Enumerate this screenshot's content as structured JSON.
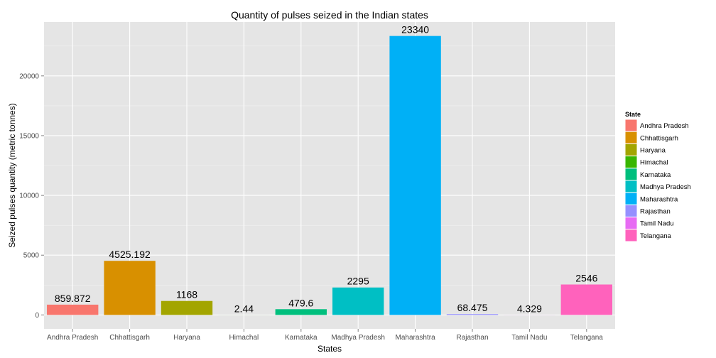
{
  "chart_data": {
    "type": "bar",
    "title": "Quantity of pulses seized in the Indian states",
    "xlabel": "States",
    "ylabel": "Seized pulses quantity (metric tonnes)",
    "categories": [
      "Andhra Pradesh",
      "Chhattisgarh",
      "Haryana",
      "Himachal",
      "Karnataka",
      "Madhya Pradesh",
      "Maharashtra",
      "Rajasthan",
      "Tamil Nadu",
      "Telangana"
    ],
    "values": [
      859.872,
      4525.192,
      1168,
      2.44,
      479.6,
      2295,
      23340,
      68.475,
      4.329,
      2546
    ],
    "data_labels": [
      "859.872",
      "4525.192",
      "1168",
      "2.44",
      "479.6",
      "2295",
      "23340",
      "68.475",
      "4.329",
      "2546"
    ],
    "colors": [
      "#F8766D",
      "#D89000",
      "#A3A500",
      "#39B600",
      "#00BF7D",
      "#00BFC4",
      "#00B0F6",
      "#9590FF",
      "#E76BF3",
      "#FF62BC"
    ],
    "yticks": [
      0,
      5000,
      10000,
      15000,
      20000
    ],
    "ylim": [
      -1167,
      24507
    ],
    "grid": true,
    "legend": {
      "title": "State",
      "position": "right",
      "items": [
        "Andhra Pradesh",
        "Chhattisgarh",
        "Haryana",
        "Himachal",
        "Karnataka",
        "Madhya Pradesh",
        "Maharashtra",
        "Rajasthan",
        "Tamil Nadu",
        "Telangana"
      ]
    }
  }
}
